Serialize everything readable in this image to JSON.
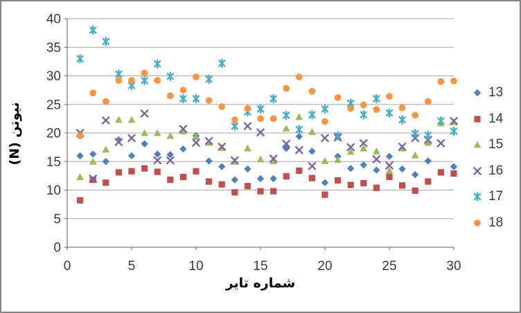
{
  "style": {
    "background": "#ffffff",
    "border_color": "#848484",
    "grid_color": "#a6a6a6",
    "axis_color": "#808080",
    "text_color": "#3a3a3a"
  },
  "chart_data": {
    "type": "scatter",
    "title": "",
    "xlabel": "شماره تایر",
    "ylabel": "نیوتن (N)",
    "xlim": [
      0,
      30
    ],
    "ylim": [
      0,
      40
    ],
    "xticks": [
      0,
      5,
      10,
      15,
      20,
      25,
      30
    ],
    "yticks": [
      0,
      5,
      10,
      15,
      20,
      25,
      30,
      35,
      40
    ],
    "grid": "horizontal",
    "legend_position": "right",
    "x": [
      1,
      2,
      3,
      4,
      5,
      6,
      7,
      8,
      9,
      10,
      11,
      12,
      13,
      14,
      15,
      16,
      17,
      18,
      19,
      20,
      21,
      22,
      23,
      24,
      25,
      26,
      27,
      28,
      29,
      30
    ],
    "series": [
      {
        "name": "13",
        "marker": "diamond",
        "color": "#4F81BD",
        "values": [
          16.0,
          16.3,
          15.0,
          18.8,
          16.0,
          18.1,
          16.3,
          16.2,
          17.2,
          19.5,
          15.1,
          14.1,
          11.8,
          13.7,
          12.0,
          12.0,
          17.3,
          19.4,
          16.8,
          11.3,
          15.9,
          13.8,
          14.4,
          13.5,
          15.9,
          13.7,
          12.7,
          15.1,
          13.1,
          14.1
        ]
      },
      {
        "name": "14",
        "marker": "square",
        "color": "#C0504D",
        "values": [
          8.2,
          11.8,
          11.3,
          13.1,
          13.3,
          13.8,
          13.2,
          11.8,
          12.3,
          13.3,
          11.5,
          11.0,
          9.6,
          10.7,
          9.8,
          9.8,
          12.4,
          13.4,
          12.1,
          9.2,
          11.7,
          10.9,
          11.2,
          10.4,
          12.3,
          10.8,
          9.9,
          11.5,
          13.1,
          12.9
        ]
      },
      {
        "name": "15",
        "marker": "triangle",
        "color": "#9BBB59",
        "values": [
          12.3,
          15.0,
          17.1,
          22.3,
          22.3,
          20.0,
          20.0,
          19.5,
          20.3,
          19.3,
          18.3,
          17.4,
          15.0,
          17.3,
          15.4,
          15.1,
          20.8,
          22.8,
          20.2,
          15.1,
          15.3,
          16.7,
          17.3,
          16.8,
          13.4,
          17.3,
          16.1,
          18.3,
          21.7,
          21.9
        ]
      },
      {
        "name": "16",
        "marker": "x",
        "color": "#8064A2",
        "values": [
          20.0,
          12.0,
          22.2,
          18.4,
          19.1,
          23.4,
          15.2,
          15.2,
          20.7,
          18.3,
          18.6,
          17.6,
          15.2,
          21.2,
          20.1,
          15.5,
          18.1,
          17.0,
          14.2,
          19.1,
          19.2,
          17.5,
          18.2,
          15.4,
          14.3,
          17.6,
          19.1,
          18.8,
          18.2,
          22.1
        ]
      },
      {
        "name": "17",
        "marker": "asterisk",
        "color": "#4BACC6",
        "values": [
          33.0,
          38.0,
          36.0,
          30.3,
          28.3,
          29.2,
          32.1,
          29.9,
          26.0,
          26.0,
          29.4,
          32.2,
          21.2,
          23.7,
          24.2,
          26.0,
          23.1,
          20.6,
          23.2,
          24.2,
          19.5,
          25.2,
          23.2,
          26.0,
          23.5,
          22.3,
          19.9,
          19.6,
          22.1,
          20.3
        ]
      },
      {
        "name": "18",
        "marker": "circle",
        "color": "#F79646",
        "values": [
          19.5,
          27.0,
          25.5,
          29.2,
          29.2,
          30.5,
          29.2,
          26.5,
          27.5,
          29.8,
          25.7,
          24.6,
          22.3,
          24.3,
          22.5,
          22.5,
          27.8,
          29.8,
          27.3,
          22.0,
          26.2,
          24.3,
          24.9,
          24.1,
          26.4,
          24.4,
          23.1,
          25.5,
          29.0,
          29.1
        ]
      }
    ]
  }
}
